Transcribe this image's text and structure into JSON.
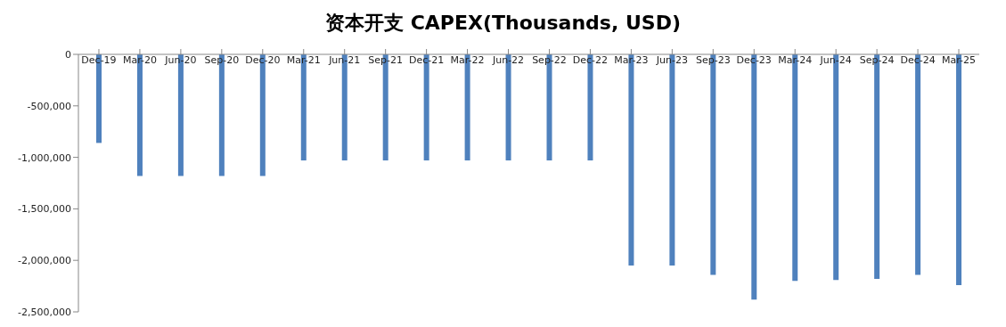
{
  "chart_data": {
    "type": "bar",
    "title": "资本开支 CAPEX(Thousands, USD)",
    "categories": [
      "Dec-19",
      "Mar-20",
      "Jun-20",
      "Sep-20",
      "Dec-20",
      "Mar-21",
      "Jun-21",
      "Sep-21",
      "Dec-21",
      "Mar-22",
      "Jun-22",
      "Sep-22",
      "Dec-22",
      "Mar-23",
      "Jun-23",
      "Sep-23",
      "Dec-23",
      "Mar-24",
      "Jun-24",
      "Sep-24",
      "Dec-24",
      "Mar-25"
    ],
    "values": [
      -860000,
      -1180000,
      -1180000,
      -1180000,
      -1180000,
      -1030000,
      -1030000,
      -1030000,
      -1030000,
      -1030000,
      -1030000,
      -1030000,
      -1030000,
      -2050000,
      -2050000,
      -2140000,
      -2380000,
      -2200000,
      -2190000,
      -2180000,
      -2140000,
      -2240000
    ],
    "color": "#4f81bd",
    "ylim": [
      -2500000,
      0
    ],
    "yticks": [
      {
        "value": -2500000,
        "label": "-2,500,000"
      },
      {
        "value": -2000000,
        "label": "-2,000,000"
      },
      {
        "value": -1500000,
        "label": "-1,500,000"
      },
      {
        "value": -1000000,
        "label": "-1,000,000"
      },
      {
        "value": -500000,
        "label": "-500,000"
      },
      0
    ]
  }
}
